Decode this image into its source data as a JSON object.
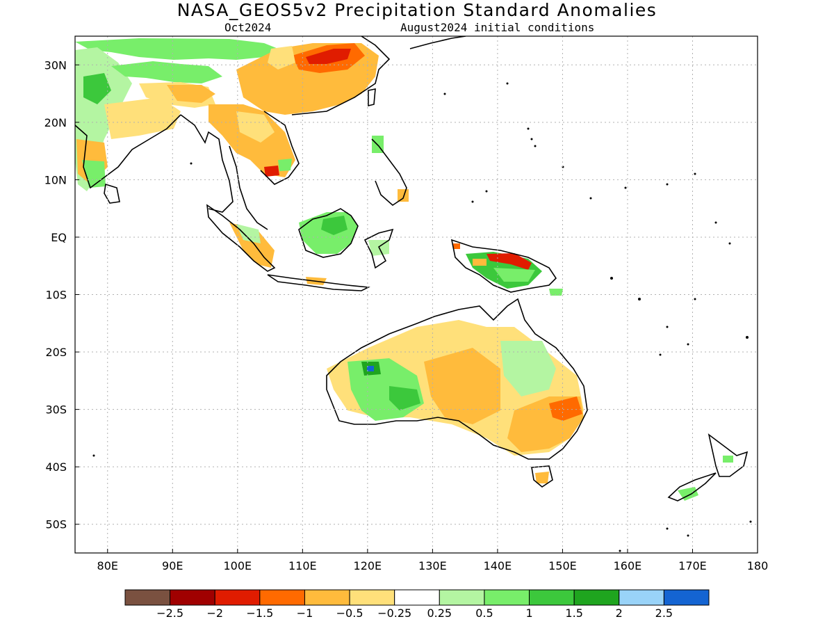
{
  "title": "NASA_GEOS5v2 Precipitation Standard Anomalies",
  "subtitle_left": "Oct2024",
  "subtitle_right": "August2024 initial conditions",
  "map": {
    "lon_range": [
      75,
      180
    ],
    "lat_range": [
      -55,
      35
    ],
    "lon_ticks": [
      "80E",
      "90E",
      "100E",
      "110E",
      "120E",
      "130E",
      "140E",
      "150E",
      "160E",
      "170E",
      "180"
    ],
    "lat_ticks": [
      "30N",
      "20N",
      "10N",
      "EQ",
      "10S",
      "20S",
      "30S",
      "40S",
      "50S"
    ],
    "grid": "dotted"
  },
  "colorbar": {
    "colors": [
      "#7a5140",
      "#a00000",
      "#e01c00",
      "#ff6a00",
      "#ffbb3c",
      "#ffe07a",
      "#ffffff",
      "#b4f5a2",
      "#78ee6a",
      "#3cc83c",
      "#1fa51f",
      "#99d3f8",
      "#1464d2"
    ],
    "labels": [
      "−2.5",
      "−2",
      "−1.5",
      "−1",
      "−0.5",
      "−0.25",
      "0.25",
      "0.5",
      "1",
      "1.5",
      "2",
      "2.5"
    ]
  },
  "anomaly_regions": [
    {
      "name": "south-china",
      "category": "-1",
      "color": "#ff6a00"
    },
    {
      "name": "indochina",
      "category": "-0.5",
      "color": "#ffbb3c"
    },
    {
      "name": "tibet-himalaya",
      "category": "1",
      "color": "#78ee6a"
    },
    {
      "name": "india-west",
      "category": "0.5",
      "color": "#b4f5a2"
    },
    {
      "name": "borneo",
      "category": "1",
      "color": "#78ee6a"
    },
    {
      "name": "sumatra",
      "category": "-0.5",
      "color": "#ffbb3c"
    },
    {
      "name": "new-guinea",
      "category": "1.5",
      "color": "#3cc83c"
    },
    {
      "name": "new-guinea-north",
      "category": "-1.5",
      "color": "#e01c00"
    },
    {
      "name": "australia-central",
      "category": "-0.5",
      "color": "#ffbb3c"
    },
    {
      "name": "australia-west",
      "category": "1",
      "color": "#78ee6a"
    },
    {
      "name": "australia-east",
      "category": "0.5",
      "color": "#b4f5a2"
    },
    {
      "name": "australia-southeast",
      "category": "-1",
      "color": "#ff6a00"
    },
    {
      "name": "new-zealand",
      "category": "1",
      "color": "#78ee6a"
    }
  ]
}
